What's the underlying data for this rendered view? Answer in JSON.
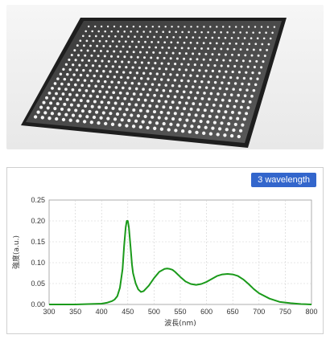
{
  "badge": {
    "label": "3 wavelength"
  },
  "photo": {
    "subject": "led-panel-grid"
  },
  "chart_data": {
    "type": "line",
    "title": "",
    "xlabel": "波長(nm)",
    "ylabel": "強度(a.u.)",
    "xlim": [
      300,
      800
    ],
    "ylim": [
      0,
      0.25
    ],
    "xticks": [
      "300",
      "350",
      "400",
      "450",
      "500",
      "550",
      "600",
      "650",
      "700",
      "750",
      "800"
    ],
    "yticks": [
      "0.00",
      "0.05",
      "0.10",
      "0.15",
      "0.20",
      "0.25"
    ],
    "grid": true,
    "legend": "none",
    "series": [
      {
        "color": "#1a9a1a",
        "x": [
          300,
          350,
          400,
          410,
          420,
          425,
          430,
          435,
          440,
          443,
          446,
          448,
          450,
          452,
          455,
          458,
          460,
          465,
          470,
          475,
          480,
          490,
          500,
          510,
          520,
          525,
          530,
          535,
          540,
          550,
          560,
          570,
          580,
          590,
          600,
          610,
          620,
          630,
          640,
          650,
          660,
          670,
          680,
          690,
          700,
          720,
          740,
          760,
          780,
          800
        ],
        "y": [
          0.0,
          0.0,
          0.002,
          0.004,
          0.008,
          0.012,
          0.02,
          0.04,
          0.085,
          0.14,
          0.185,
          0.2,
          0.2,
          0.185,
          0.14,
          0.095,
          0.075,
          0.05,
          0.036,
          0.03,
          0.032,
          0.045,
          0.063,
          0.078,
          0.085,
          0.086,
          0.085,
          0.083,
          0.078,
          0.066,
          0.055,
          0.049,
          0.047,
          0.049,
          0.054,
          0.061,
          0.068,
          0.072,
          0.073,
          0.072,
          0.068,
          0.06,
          0.049,
          0.037,
          0.027,
          0.014,
          0.006,
          0.003,
          0.001,
          0.0
        ]
      }
    ]
  }
}
